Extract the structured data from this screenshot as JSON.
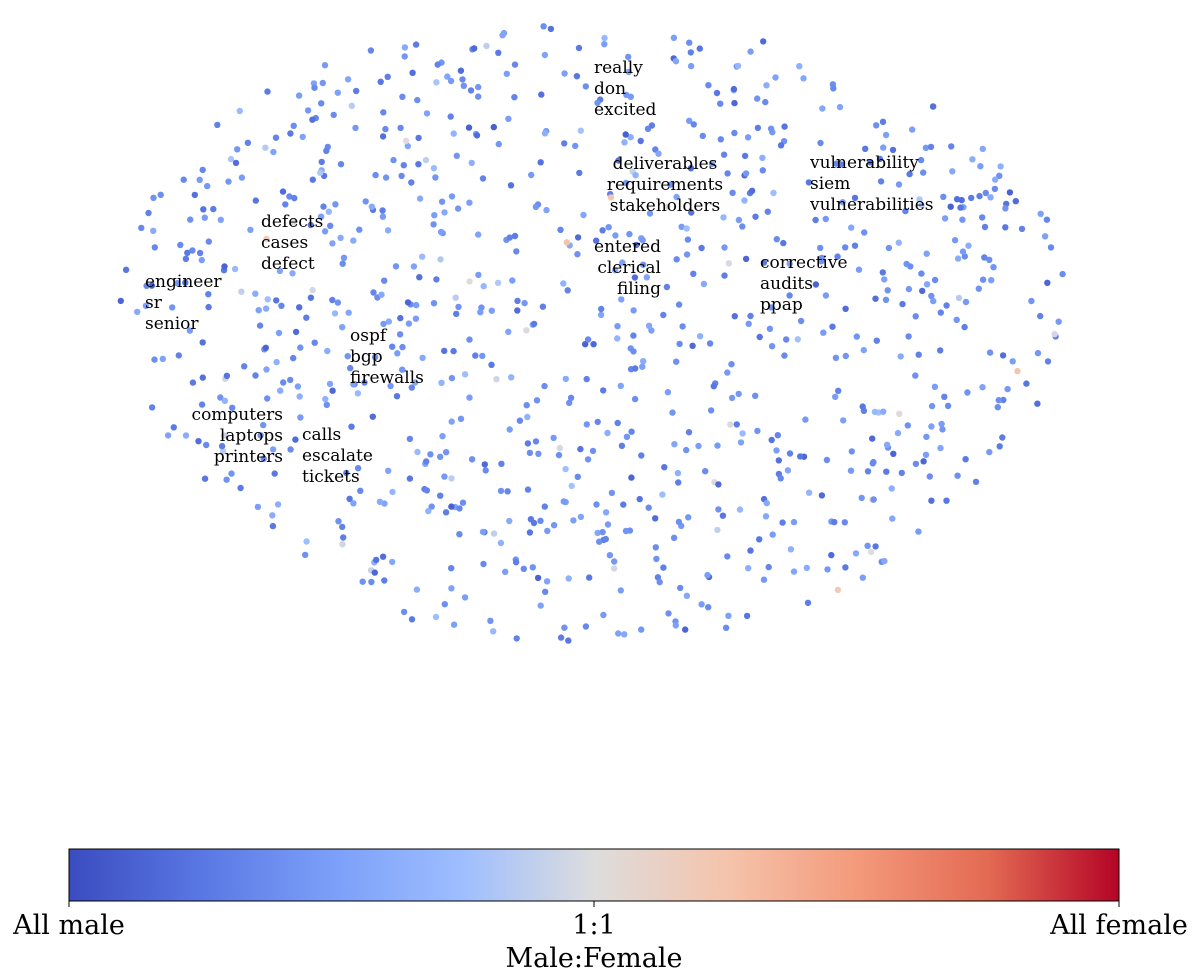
{
  "chart_data": {
    "type": "scatter",
    "title": "",
    "description_axes": "none",
    "grid": false,
    "axes_visible": false,
    "colormap": {
      "name": "coolwarm",
      "min_color": "#3b4cc0",
      "mid_color": "#dddddd",
      "max_color": "#b40426"
    },
    "colorbar": {
      "label": "Male:Female",
      "ticks": [
        {
          "value": 0.0,
          "label": "All male"
        },
        {
          "value": 0.5,
          "label": "1:1"
        },
        {
          "value": 1.0,
          "label": "All female"
        }
      ],
      "orientation": "horizontal",
      "placement": "bottom"
    },
    "annotated_clusters": [
      {
        "words": [
          "really",
          "don",
          "excited"
        ],
        "align": "left"
      },
      {
        "words": [
          "deliverables",
          "requirements",
          "stakeholders"
        ],
        "align": "center"
      },
      {
        "words": [
          "vulnerability",
          "siem",
          "vulnerabilities"
        ],
        "align": "left"
      },
      {
        "words": [
          "defects",
          "cases",
          "defect"
        ],
        "align": "left"
      },
      {
        "words": [
          "entered",
          "clerical",
          "filing"
        ],
        "align": "right"
      },
      {
        "words": [
          "corrective",
          "audits",
          "ppap"
        ],
        "align": "left"
      },
      {
        "words": [
          "engineer",
          "sr",
          "senior"
        ],
        "align": "left"
      },
      {
        "words": [
          "ospf",
          "bgp",
          "firewalls"
        ],
        "align": "left"
      },
      {
        "words": [
          "computers",
          "laptops",
          "printers"
        ],
        "align": "right"
      },
      {
        "words": [
          "calls",
          "escalate",
          "tickets"
        ],
        "align": "left"
      }
    ],
    "point_summary": {
      "approx_count": 950,
      "female_share_range": [
        0.0,
        0.62
      ],
      "typical_female_share": [
        0.05,
        0.35
      ]
    }
  }
}
